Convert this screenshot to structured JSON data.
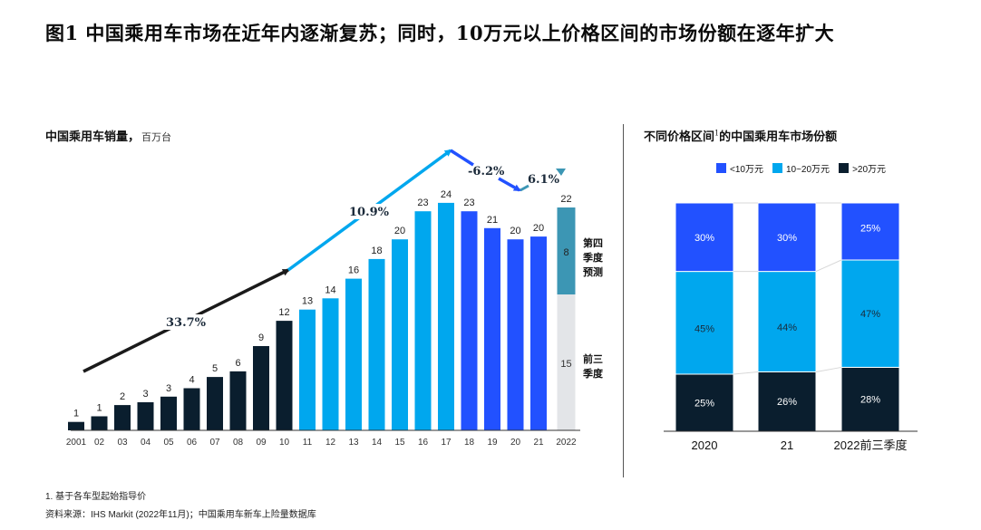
{
  "title": "图1 中国乘用车市场在近年内逐渐复苏；同时，10万元以上价格区间的市场份额在逐年扩大",
  "footnotes": {
    "note1": "1. 基于各车型起始指导价",
    "source": "资料来源：IHS Markit (2022年11月)；中国乘用车新车上险量数据库"
  },
  "chart_data": [
    {
      "type": "bar",
      "title": "中国乘用车销量，",
      "unit": "百万台",
      "xlabel": "",
      "ylabel": "",
      "ylim": [
        0,
        24
      ],
      "grid": false,
      "categories": [
        "2001",
        "02",
        "03",
        "04",
        "05",
        "06",
        "07",
        "08",
        "09",
        "10",
        "11",
        "12",
        "13",
        "14",
        "15",
        "16",
        "17",
        "18",
        "19",
        "20",
        "21",
        "2022"
      ],
      "values": [
        1,
        1,
        2,
        3,
        3,
        4,
        5,
        6,
        9,
        12,
        13,
        14,
        16,
        18,
        20,
        23,
        24,
        23,
        21,
        20,
        20,
        22
      ],
      "value_labels": [
        "1",
        "1",
        "2",
        "3",
        "3",
        "4",
        "5",
        "6",
        "9",
        "12",
        "13",
        "14",
        "16",
        "18",
        "20",
        "23",
        "24",
        "23",
        "21",
        "20",
        "20",
        "22"
      ],
      "bar_values_for_height": [
        1.5,
        2.5,
        4.5,
        5,
        6,
        7.5,
        9.5,
        10.5,
        15,
        19.5,
        21.5,
        23.5,
        27,
        30.5,
        34,
        39,
        40.5,
        39,
        36,
        34,
        34.5,
        null
      ],
      "colors": {
        "period1": "#0a1e2e",
        "period2": "#00a7ee",
        "period3": "#2251ff",
        "forecast": "#3c96b4",
        "ytd": "#e3e5e8"
      },
      "color_groups": [
        "period1",
        "period1",
        "period1",
        "period1",
        "period1",
        "period1",
        "period1",
        "period1",
        "period1",
        "period1",
        "period2",
        "period2",
        "period2",
        "period2",
        "period2",
        "period2",
        "period2",
        "period3",
        "period3",
        "period3",
        "period3",
        "stack"
      ],
      "stack_2022": {
        "segments": [
          {
            "name": "前三季度",
            "value": 15,
            "label": "15",
            "color": "#e3e5e8"
          },
          {
            "name": "第四季度预测",
            "value": 8,
            "label": "8",
            "color": "#3c96b4"
          }
        ],
        "total_label": "22"
      },
      "side_labels": [
        {
          "text": [
            "第四",
            "季度",
            "预测"
          ]
        },
        {
          "text": [
            "前三",
            "季度"
          ]
        }
      ],
      "cagr_annotations": [
        {
          "label": "33.7%",
          "period": "2001-2010",
          "color": "#1a1a1a"
        },
        {
          "label": "10.9%",
          "period": "2010-2017",
          "color": "#00a7ee"
        },
        {
          "label": "-6.2%",
          "period": "2017-2020",
          "color": "#2251ff"
        },
        {
          "label": "6.1%",
          "period": "2020-2022",
          "color": "#3c96b4"
        }
      ]
    },
    {
      "type": "bar",
      "subtype": "stacked-100",
      "title": "不同价格区间",
      "title_sup": "1",
      "title_suffix": "的中国乘用车市场份额",
      "categories": [
        "2020",
        "21",
        "2022前三季度"
      ],
      "series": [
        {
          "name": ">20万元",
          "color": "#0a1e2e",
          "values": [
            25,
            26,
            28
          ],
          "labels": [
            "25%",
            "26%",
            "28%"
          ]
        },
        {
          "name": "10~20万元",
          "color": "#00a7ee",
          "values": [
            45,
            44,
            47
          ],
          "labels": [
            "45%",
            "44%",
            "47%"
          ]
        },
        {
          "name": "<10万元",
          "color": "#2251ff",
          "values": [
            30,
            30,
            25
          ],
          "labels": [
            "30%",
            "30%",
            "25%"
          ]
        }
      ],
      "legend": [
        {
          "name": "<10万元",
          "color": "#2251ff"
        },
        {
          "name": "10~20万元",
          "color": "#00a7ee"
        },
        {
          "name": ">20万元",
          "color": "#0a1e2e"
        }
      ],
      "legend_position": "top-right",
      "ylim": [
        0,
        100
      ]
    }
  ]
}
